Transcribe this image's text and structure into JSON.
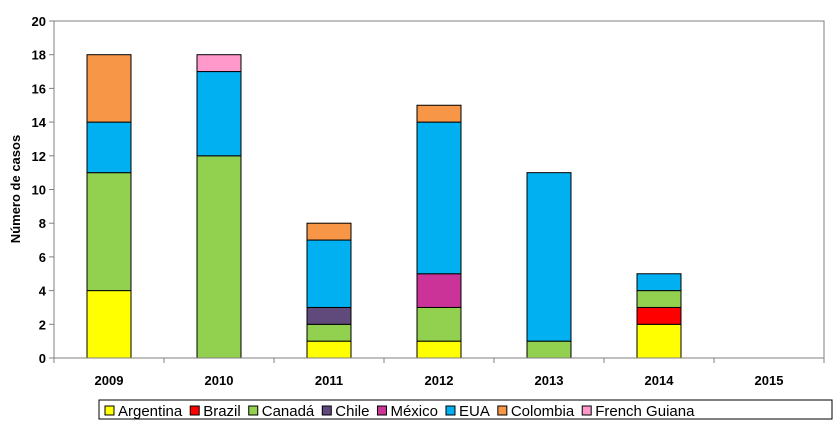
{
  "chart_data": {
    "type": "bar",
    "stacked": true,
    "title": "",
    "xlabel": "",
    "ylabel": "Número de casos",
    "ylim": [
      0,
      20
    ],
    "yticks": [
      0,
      2,
      4,
      6,
      8,
      10,
      12,
      14,
      16,
      18,
      20
    ],
    "grid": false,
    "legend_position": "bottom",
    "categories": [
      "2009",
      "2010",
      "2011",
      "2012",
      "2013",
      "2014",
      "2015"
    ],
    "series": [
      {
        "name": "Argentina",
        "color": "#FFFF00",
        "values": [
          4,
          0,
          1,
          1,
          0,
          2,
          0
        ]
      },
      {
        "name": "Brazil",
        "color": "#FF0000",
        "values": [
          0,
          0,
          0,
          0,
          0,
          1,
          0
        ]
      },
      {
        "name": "Canadá",
        "color": "#92D050",
        "values": [
          7,
          12,
          1,
          2,
          1,
          1,
          0
        ]
      },
      {
        "name": "Chile",
        "color": "#604A7B",
        "values": [
          0,
          0,
          1,
          0,
          0,
          0,
          0
        ]
      },
      {
        "name": "México",
        "color": "#CC3399",
        "values": [
          0,
          0,
          0,
          2,
          0,
          0,
          0
        ]
      },
      {
        "name": "EUA",
        "color": "#00B0F0",
        "values": [
          3,
          5,
          4,
          9,
          10,
          1,
          0
        ]
      },
      {
        "name": "Colombia",
        "color": "#F79646",
        "values": [
          4,
          0,
          1,
          1,
          0,
          0,
          0
        ]
      },
      {
        "name": "French Guiana",
        "color": "#FF99CC",
        "values": [
          0,
          1,
          0,
          0,
          0,
          0,
          0
        ]
      }
    ]
  }
}
